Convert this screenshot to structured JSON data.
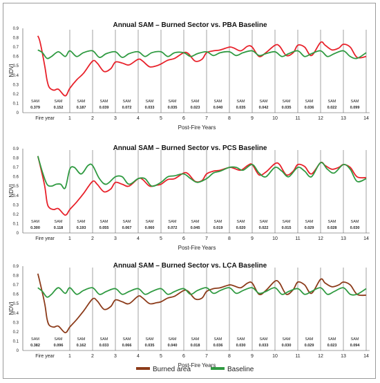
{
  "chart_data": [
    {
      "type": "line",
      "title": "Annual SAM – Burned Sector vs. PBA Baseline",
      "xlabel": "Post-Fire Years",
      "ylabel": "NDVI",
      "x_ticks": [
        "Fire year",
        "1",
        "2",
        "3",
        "4",
        "5",
        "6",
        "7",
        "8",
        "9",
        "10",
        "11",
        "12",
        "13",
        "14"
      ],
      "xlim": [
        0,
        14
      ],
      "ylim": [
        0,
        0.9
      ],
      "y_ticks": [
        "0",
        "0.1",
        "0.2",
        "0.3",
        "0.4",
        "0.5",
        "0.6",
        "0.7",
        "0.8",
        "0.9"
      ],
      "sam_label": "SAM",
      "sam_values": [
        "0.379",
        "0.152",
        "0.187",
        "0.039",
        "0.072",
        "0.033",
        "0.035",
        "0.023",
        "0.040",
        "0.035",
        "0.042",
        "0.035",
        "0.036",
        "0.022",
        "0.099"
      ],
      "series": [
        {
          "name": "Burned area",
          "color": "#e8212a",
          "x": [
            -0.4,
            -0.3,
            -0.1,
            0,
            0.1,
            0.3,
            0.5,
            0.8,
            1,
            1.3,
            1.6,
            2,
            2.2,
            2.5,
            2.8,
            3,
            3.3,
            3.6,
            4,
            4.2,
            4.5,
            4.8,
            5,
            5.3,
            5.6,
            6,
            6.2,
            6.5,
            6.8,
            7,
            7.3,
            7.6,
            8,
            8.2,
            8.5,
            8.8,
            9,
            9.3,
            9.6,
            10,
            10.2,
            10.5,
            10.8,
            11,
            11.3,
            11.6,
            12,
            12.2,
            12.5,
            12.8,
            13,
            13.3,
            13.6,
            14
          ],
          "y": [
            0.82,
            0.75,
            0.5,
            0.35,
            0.27,
            0.24,
            0.25,
            0.18,
            0.26,
            0.35,
            0.42,
            0.55,
            0.53,
            0.44,
            0.47,
            0.54,
            0.53,
            0.51,
            0.57,
            0.55,
            0.49,
            0.5,
            0.52,
            0.56,
            0.58,
            0.64,
            0.63,
            0.55,
            0.57,
            0.64,
            0.66,
            0.67,
            0.7,
            0.69,
            0.66,
            0.71,
            0.7,
            0.6,
            0.64,
            0.72,
            0.71,
            0.61,
            0.64,
            0.72,
            0.7,
            0.61,
            0.75,
            0.72,
            0.67,
            0.69,
            0.73,
            0.7,
            0.59,
            0.6
          ]
        },
        {
          "name": "Baseline",
          "color": "#2f9a41",
          "x": [
            -0.4,
            -0.2,
            0,
            0.2,
            0.5,
            0.8,
            1,
            1.3,
            1.6,
            2,
            2.3,
            2.6,
            3,
            3.3,
            3.6,
            4,
            4.3,
            4.6,
            5,
            5.3,
            5.6,
            6,
            6.3,
            6.6,
            7,
            7.3,
            7.6,
            8,
            8.3,
            8.6,
            9,
            9.3,
            9.6,
            10,
            10.3,
            10.6,
            11,
            11.3,
            11.6,
            12,
            12.3,
            12.6,
            13,
            13.3,
            13.6,
            14
          ],
          "y": [
            0.67,
            0.64,
            0.58,
            0.6,
            0.65,
            0.6,
            0.66,
            0.6,
            0.64,
            0.66,
            0.59,
            0.63,
            0.65,
            0.59,
            0.63,
            0.65,
            0.6,
            0.64,
            0.65,
            0.6,
            0.64,
            0.64,
            0.6,
            0.63,
            0.65,
            0.61,
            0.64,
            0.65,
            0.61,
            0.64,
            0.66,
            0.61,
            0.63,
            0.65,
            0.6,
            0.63,
            0.66,
            0.6,
            0.63,
            0.66,
            0.6,
            0.63,
            0.66,
            0.6,
            0.58,
            0.64
          ]
        }
      ]
    },
    {
      "type": "line",
      "title": "Annual SAM – Burned Sector vs. PCS Baseline",
      "xlabel": "Post-Fire Years",
      "ylabel": "NDVI",
      "x_ticks": [
        "Fire year",
        "1",
        "2",
        "3",
        "4",
        "5",
        "6",
        "7",
        "8",
        "9",
        "10",
        "11",
        "12",
        "13",
        "14"
      ],
      "xlim": [
        0,
        14
      ],
      "ylim": [
        0,
        0.9
      ],
      "y_ticks": [
        "0",
        "0.1",
        "0.2",
        "0.3",
        "0.4",
        "0.5",
        "0.6",
        "0.7",
        "0.8",
        "0.9"
      ],
      "sam_label": "SAM",
      "sam_values": [
        "0.300",
        "0.118",
        "0.193",
        "0.055",
        "0.067",
        "0.060",
        "0.072",
        "0.045",
        "0.019",
        "0.020",
        "0.022",
        "0.015",
        "0.029",
        "0.028",
        "0.030"
      ],
      "series": [
        {
          "name": "Burned area",
          "color": "#e8212a",
          "x": [
            -0.4,
            -0.3,
            -0.1,
            0,
            0.1,
            0.3,
            0.5,
            0.8,
            1,
            1.3,
            1.6,
            2,
            2.2,
            2.5,
            2.8,
            3,
            3.3,
            3.6,
            4,
            4.2,
            4.5,
            4.8,
            5,
            5.3,
            5.6,
            6,
            6.2,
            6.5,
            6.8,
            7,
            7.3,
            7.6,
            8,
            8.2,
            8.5,
            8.8,
            9,
            9.3,
            9.6,
            10,
            10.2,
            10.5,
            10.8,
            11,
            11.3,
            11.6,
            12,
            12.2,
            12.5,
            12.8,
            13,
            13.3,
            13.6,
            14
          ],
          "y": [
            0.82,
            0.72,
            0.5,
            0.33,
            0.27,
            0.25,
            0.26,
            0.19,
            0.25,
            0.33,
            0.42,
            0.55,
            0.52,
            0.44,
            0.47,
            0.54,
            0.52,
            0.5,
            0.58,
            0.57,
            0.5,
            0.51,
            0.52,
            0.57,
            0.58,
            0.64,
            0.63,
            0.55,
            0.56,
            0.63,
            0.66,
            0.67,
            0.7,
            0.69,
            0.67,
            0.72,
            0.73,
            0.62,
            0.65,
            0.74,
            0.73,
            0.62,
            0.66,
            0.73,
            0.71,
            0.63,
            0.75,
            0.72,
            0.68,
            0.7,
            0.73,
            0.7,
            0.6,
            0.59
          ]
        },
        {
          "name": "Baseline",
          "color": "#2f9a41",
          "x": [
            -0.4,
            -0.2,
            0,
            0.2,
            0.4,
            0.6,
            0.8,
            1,
            1.2,
            1.5,
            1.8,
            2,
            2.3,
            2.6,
            3,
            3.3,
            3.6,
            4,
            4.3,
            4.6,
            5,
            5.3,
            5.6,
            6,
            6.3,
            6.6,
            7,
            7.3,
            7.6,
            8,
            8.3,
            8.6,
            9,
            9.3,
            9.6,
            10,
            10.3,
            10.6,
            11,
            11.3,
            11.6,
            12,
            12.3,
            12.6,
            13,
            13.3,
            13.6,
            14
          ],
          "y": [
            0.82,
            0.65,
            0.52,
            0.5,
            0.52,
            0.52,
            0.48,
            0.68,
            0.7,
            0.63,
            0.72,
            0.72,
            0.58,
            0.52,
            0.6,
            0.6,
            0.52,
            0.58,
            0.58,
            0.5,
            0.54,
            0.6,
            0.61,
            0.63,
            0.58,
            0.54,
            0.58,
            0.64,
            0.66,
            0.7,
            0.7,
            0.67,
            0.73,
            0.64,
            0.6,
            0.7,
            0.66,
            0.6,
            0.7,
            0.66,
            0.6,
            0.75,
            0.68,
            0.64,
            0.73,
            0.68,
            0.55,
            0.58
          ]
        }
      ]
    },
    {
      "type": "line",
      "title": "Annual SAM – Burned Sector vs. LCA Baseline",
      "xlabel": "Post-Fire Years",
      "ylabel": "NDVI",
      "x_ticks": [
        "Fire year",
        "1",
        "2",
        "3",
        "4",
        "5",
        "6",
        "7",
        "8",
        "9",
        "10",
        "11",
        "12",
        "13",
        "14"
      ],
      "xlim": [
        0,
        14
      ],
      "ylim": [
        0,
        0.9
      ],
      "y_ticks": [
        "0",
        "0.1",
        "0.2",
        "0.3",
        "0.4",
        "0.5",
        "0.6",
        "0.7",
        "0.8",
        "0.9"
      ],
      "sam_label": "SAM",
      "sam_values": [
        "0.382",
        "0.096",
        "0.162",
        "0.033",
        "0.066",
        "0.035",
        "0.040",
        "0.018",
        "0.036",
        "0.030",
        "0.033",
        "0.030",
        "0.029",
        "0.023",
        "0.094"
      ],
      "series": [
        {
          "name": "Burned area",
          "color": "#8c3b1a",
          "x": [
            -0.4,
            -0.3,
            -0.1,
            0,
            0.1,
            0.3,
            0.5,
            0.8,
            1,
            1.3,
            1.6,
            2,
            2.2,
            2.5,
            2.8,
            3,
            3.3,
            3.6,
            4,
            4.2,
            4.5,
            4.8,
            5,
            5.3,
            5.6,
            6,
            6.2,
            6.5,
            6.8,
            7,
            7.3,
            7.6,
            8,
            8.2,
            8.5,
            8.8,
            9,
            9.3,
            9.6,
            10,
            10.2,
            10.5,
            10.8,
            11,
            11.3,
            11.6,
            12,
            12.2,
            12.5,
            12.8,
            13,
            13.3,
            13.6,
            14
          ],
          "y": [
            0.82,
            0.72,
            0.5,
            0.34,
            0.27,
            0.25,
            0.26,
            0.19,
            0.25,
            0.33,
            0.42,
            0.55,
            0.53,
            0.44,
            0.47,
            0.54,
            0.52,
            0.5,
            0.58,
            0.56,
            0.5,
            0.51,
            0.52,
            0.56,
            0.58,
            0.64,
            0.63,
            0.55,
            0.56,
            0.63,
            0.66,
            0.67,
            0.7,
            0.69,
            0.67,
            0.72,
            0.72,
            0.6,
            0.64,
            0.74,
            0.72,
            0.6,
            0.65,
            0.73,
            0.7,
            0.61,
            0.76,
            0.72,
            0.68,
            0.7,
            0.73,
            0.7,
            0.6,
            0.59
          ]
        },
        {
          "name": "Baseline",
          "color": "#2f9a41",
          "x": [
            -0.4,
            -0.2,
            0,
            0.2,
            0.5,
            0.8,
            1,
            1.3,
            1.6,
            2,
            2.3,
            2.6,
            3,
            3.3,
            3.6,
            4,
            4.3,
            4.6,
            5,
            5.3,
            5.6,
            6,
            6.3,
            6.6,
            7,
            7.3,
            7.6,
            8,
            8.3,
            8.6,
            9,
            9.3,
            9.6,
            10,
            10.3,
            10.6,
            11,
            11.3,
            11.6,
            12,
            12.3,
            12.6,
            13,
            13.3,
            13.6,
            14
          ],
          "y": [
            0.67,
            0.63,
            0.57,
            0.6,
            0.67,
            0.61,
            0.67,
            0.6,
            0.64,
            0.67,
            0.6,
            0.63,
            0.66,
            0.6,
            0.63,
            0.66,
            0.6,
            0.63,
            0.66,
            0.6,
            0.63,
            0.66,
            0.6,
            0.64,
            0.67,
            0.61,
            0.64,
            0.67,
            0.61,
            0.64,
            0.67,
            0.61,
            0.63,
            0.67,
            0.6,
            0.63,
            0.66,
            0.6,
            0.63,
            0.67,
            0.6,
            0.63,
            0.67,
            0.6,
            0.6,
            0.66
          ]
        }
      ]
    }
  ],
  "legend": {
    "items": [
      {
        "label": "Burned area",
        "color": "#8c3b1a"
      },
      {
        "label": "Baseline",
        "color": "#2f9a41"
      }
    ]
  }
}
